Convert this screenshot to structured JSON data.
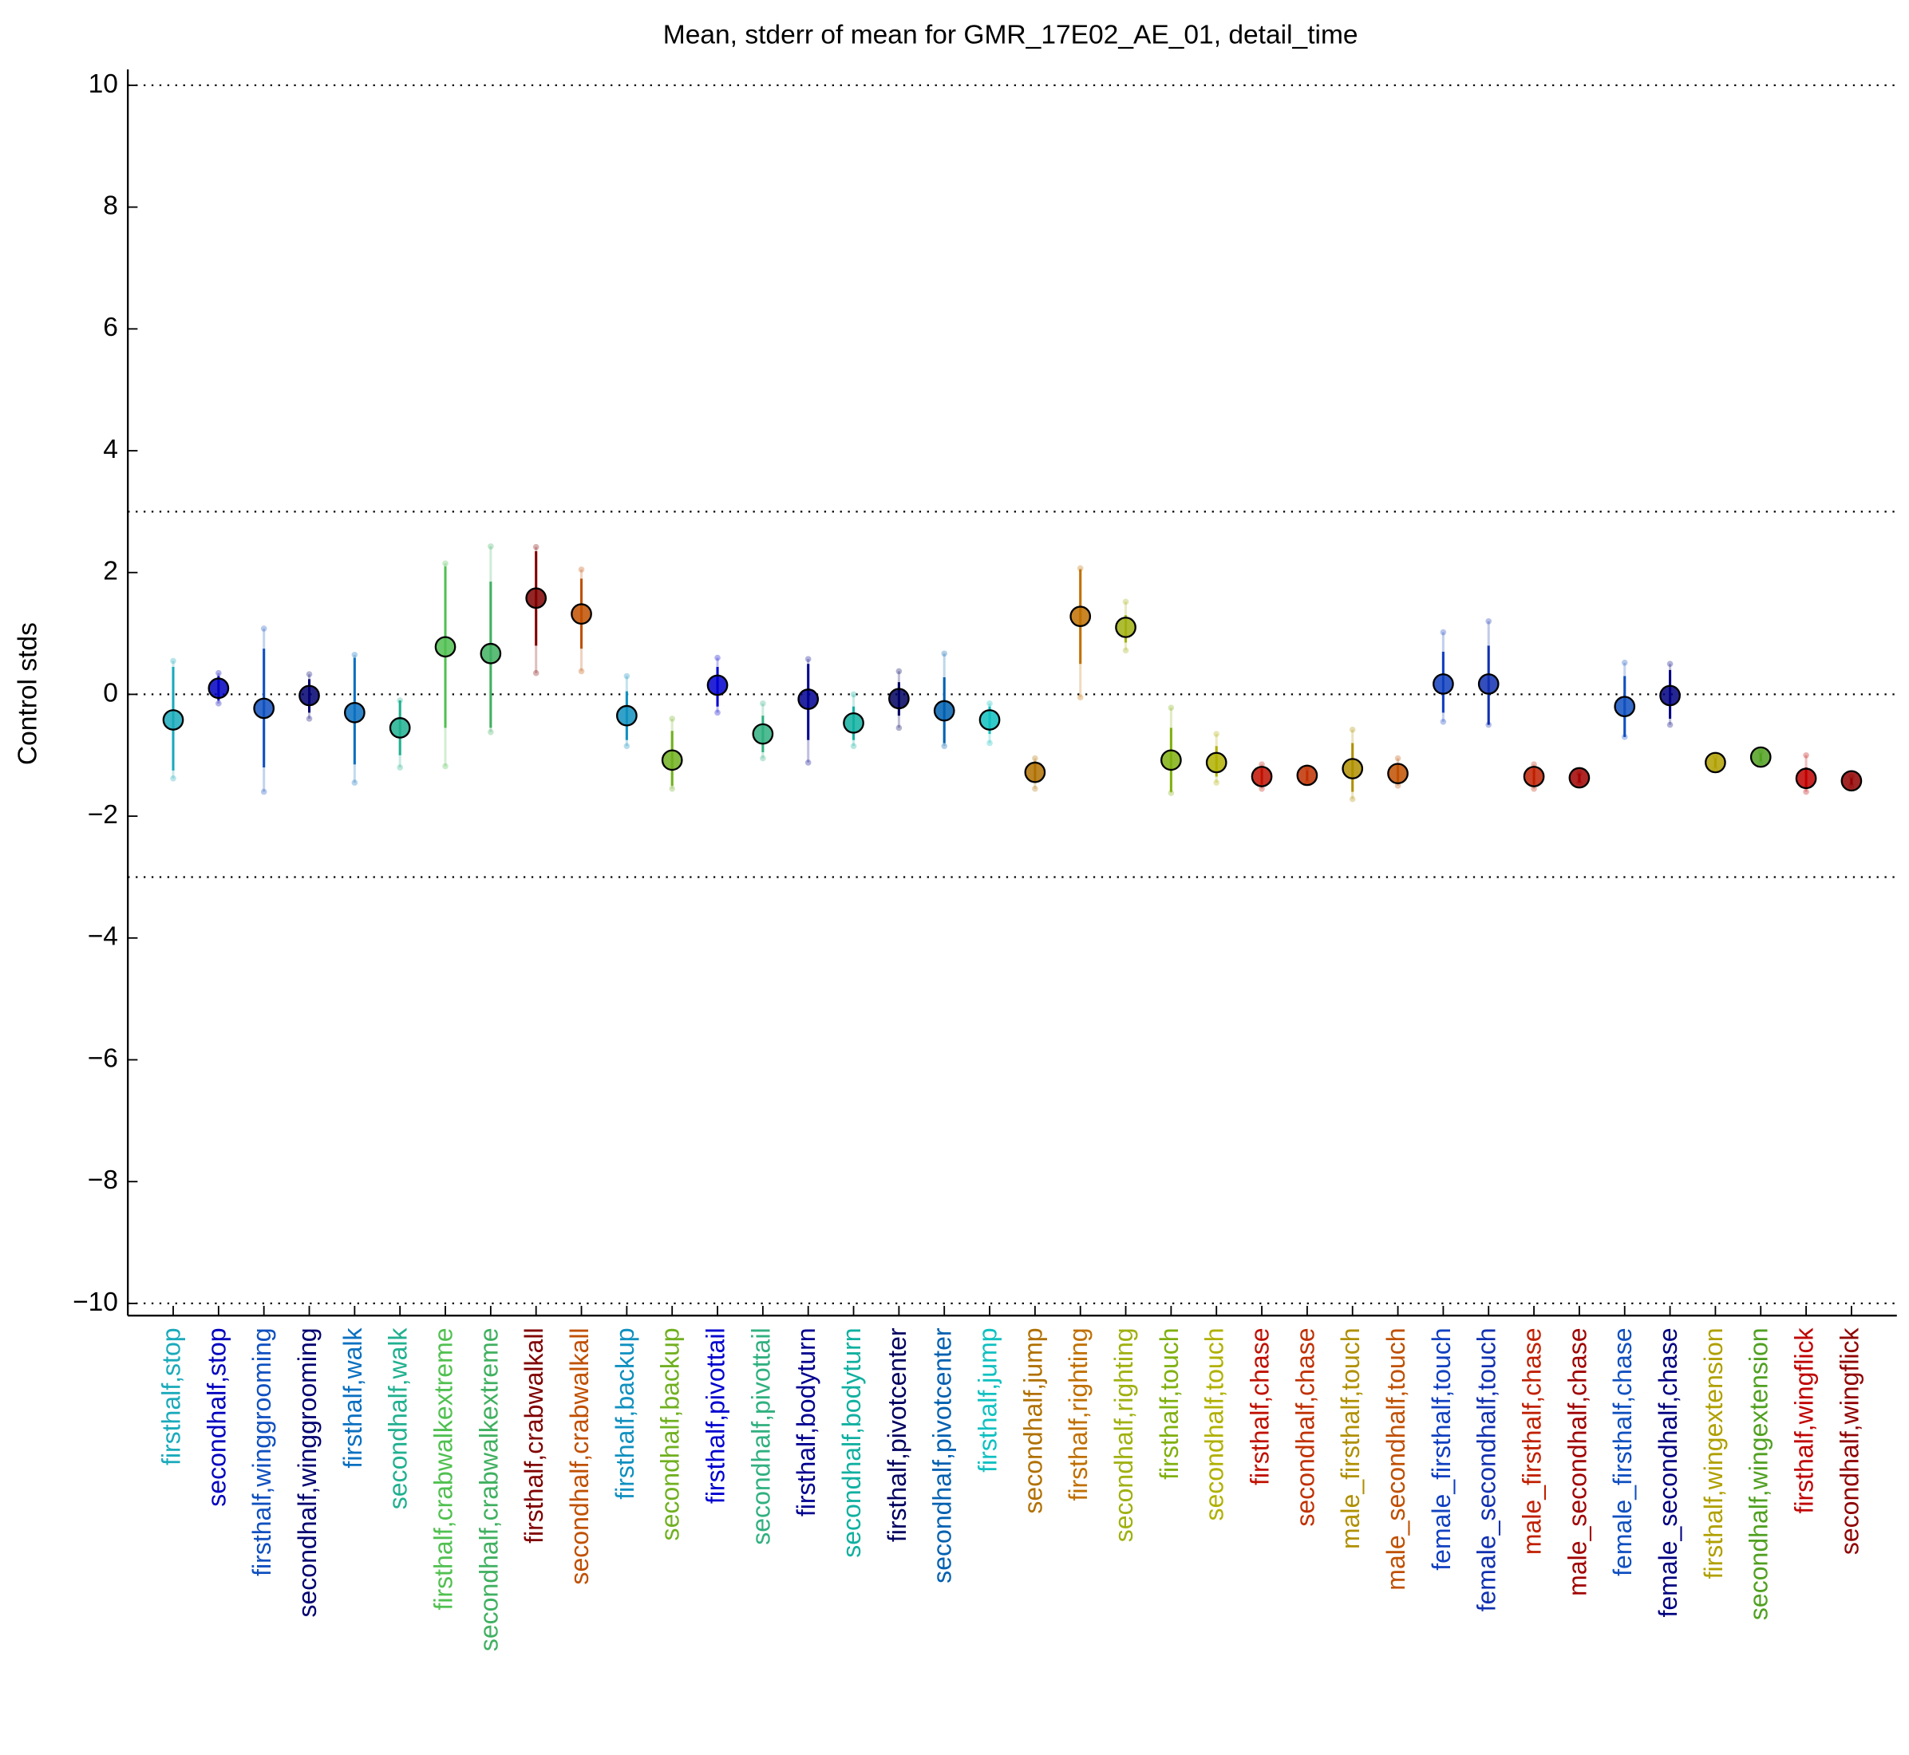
{
  "chart_data": {
    "type": "errorbar",
    "title": "Mean, stderr of mean for GMR_17E02_AE_01, detail_time",
    "y_label": "Control stds",
    "categories": [
      "firsthalf,stop",
      "secondhalf,stop",
      "firsthalf,winggrooming",
      "secondhalf,winggrooming",
      "firsthalf,walk",
      "secondhalf,walk",
      "firsthalf,crabwalkextreme",
      "secondhalf,crabwalkextreme",
      "firsthalf,crabwalkall",
      "secondhalf,crabwalkall",
      "firsthalf,backup",
      "secondhalf,backup",
      "firsthalf,pivottail",
      "secondhalf,pivottail",
      "firsthalf,bodyturn",
      "secondhalf,bodyturn",
      "firsthalf,pivotcenter",
      "secondhalf,pivotcenter",
      "firsthalf,jump",
      "secondhalf,jump",
      "firsthalf,righting",
      "secondhalf,righting",
      "firsthalf,touch",
      "secondhalf,touch",
      "firsthalf,chase",
      "secondhalf,chase",
      "male_firsthalf,touch",
      "male_secondhalf,touch",
      "female_firsthalf,touch",
      "female_secondhalf,touch",
      "male_firsthalf,chase",
      "male_secondhalf,chase",
      "female_firsthalf,chase",
      "female_secondhalf,chase",
      "firsthalf,wingextension",
      "secondhalf,wingextension",
      "firsthalf,wingflick",
      "secondhalf,wingflick"
    ],
    "values": [
      -0.42,
      0.1,
      -0.23,
      -0.02,
      -0.3,
      -0.55,
      0.78,
      0.67,
      1.58,
      1.32,
      -0.35,
      -1.08,
      0.15,
      -0.65,
      -0.08,
      -0.47,
      -0.07,
      -0.27,
      -0.42,
      -1.28,
      1.28,
      1.1,
      -1.08,
      -1.12,
      -1.35,
      -1.33,
      -1.22,
      -1.3,
      0.17,
      0.17,
      -1.35,
      -1.37,
      -0.2,
      -0.02,
      -1.12,
      -1.03,
      -1.38,
      -1.42
    ],
    "lower": [
      -1.25,
      -0.1,
      -1.2,
      -0.3,
      -1.15,
      -1.0,
      -0.55,
      -0.55,
      0.8,
      0.75,
      -0.75,
      -1.5,
      -0.2,
      -0.95,
      -0.75,
      -0.75,
      -0.35,
      -0.8,
      -0.65,
      -1.45,
      0.5,
      0.85,
      -1.6,
      -1.35,
      -1.48,
      -1.42,
      -1.6,
      -1.45,
      -0.3,
      -0.5,
      -1.48,
      -1.45,
      -0.7,
      -0.4,
      -1.2,
      -1.1,
      -1.55,
      -1.48
    ],
    "upper": [
      0.45,
      0.3,
      0.75,
      0.25,
      0.6,
      -0.1,
      2.1,
      1.85,
      2.35,
      1.9,
      0.05,
      -0.6,
      0.45,
      -0.35,
      0.5,
      -0.2,
      0.2,
      0.28,
      -0.2,
      -1.1,
      2.05,
      1.3,
      -0.55,
      -0.85,
      -1.22,
      -1.25,
      -0.8,
      -1.15,
      0.7,
      0.8,
      -1.22,
      -1.3,
      0.3,
      0.4,
      -1.05,
      -0.97,
      -1.2,
      -1.38
    ],
    "outer_lower": [
      -1.38,
      -0.15,
      -1.6,
      -0.4,
      -1.45,
      -1.2,
      -1.18,
      -0.62,
      0.35,
      0.38,
      -0.85,
      -1.55,
      -0.3,
      -1.05,
      -1.12,
      -0.85,
      -0.55,
      -0.85,
      -0.8,
      -1.55,
      -0.05,
      0.72,
      -1.62,
      -1.45,
      -1.55,
      -1.45,
      -1.72,
      -1.5,
      -0.45,
      -0.5,
      -1.55,
      -1.45,
      -0.7,
      -0.5,
      -1.22,
      -1.12,
      -1.6,
      -1.5
    ],
    "outer_upper": [
      0.55,
      0.35,
      1.08,
      0.33,
      0.65,
      -0.1,
      2.15,
      2.43,
      2.42,
      2.05,
      0.3,
      -0.4,
      0.6,
      -0.15,
      0.58,
      0.0,
      0.38,
      0.67,
      -0.15,
      -1.05,
      2.07,
      1.52,
      -0.22,
      -0.65,
      -1.15,
      -1.2,
      -0.58,
      -1.05,
      1.02,
      1.2,
      -1.15,
      -1.3,
      0.52,
      0.5,
      -1.03,
      -0.95,
      -1.0,
      -1.35
    ],
    "colors": [
      "#1aaabb",
      "#0000c0",
      "#1050c0",
      "#000070",
      "#0a70c0",
      "#20b090",
      "#50c050",
      "#40b060",
      "#800000",
      "#c05000",
      "#1090c0",
      "#70b020",
      "#0000d0",
      "#30b080",
      "#000090",
      "#10b0a0",
      "#000060",
      "#0060b0",
      "#10c0c0",
      "#b07000",
      "#c07000",
      "#a0b010",
      "#80b010",
      "#b0b000",
      "#c01000",
      "#c03000",
      "#b09000",
      "#c05000",
      "#1040c0",
      "#1030b0",
      "#c02000",
      "#a00000",
      "#1050c0",
      "#000080",
      "#b0a000",
      "#50a020",
      "#c00000",
      "#900000"
    ],
    "xlim": [
      0,
      39
    ],
    "ylim": [
      -10.2,
      10.25
    ],
    "yticks": [
      {
        "value": -10,
        "label": "−10"
      },
      {
        "value": -8,
        "label": "−8"
      },
      {
        "value": -6,
        "label": "−6"
      },
      {
        "value": -4,
        "label": "−4"
      },
      {
        "value": -2,
        "label": "−2"
      },
      0,
      2,
      4,
      6,
      8,
      10
    ],
    "hlines": [
      10,
      3,
      0,
      -3,
      -10
    ]
  }
}
